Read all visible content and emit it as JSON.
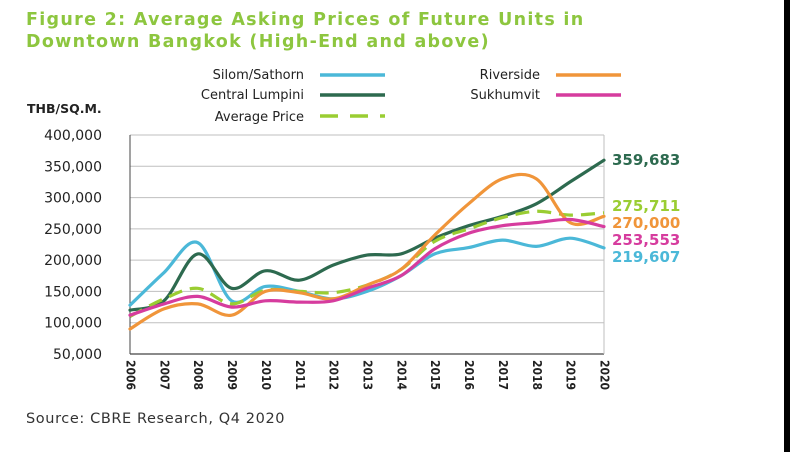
{
  "figure_title_line1": "Figure 2: Average Asking Prices of Future Units in",
  "figure_title_line2": "Downtown Bangkok (High-End and above)",
  "source": "Source: CBRE Research, Q4 2020",
  "chart_data": {
    "type": "line",
    "ylabel": "THB/SQ.M.",
    "ylim": [
      50000,
      400000
    ],
    "yticks": [
      "400,000",
      "350,000",
      "300,000",
      "250,000",
      "200,000",
      "150,000",
      "100,000",
      "50,000"
    ],
    "ytick_values": [
      400000,
      350000,
      300000,
      250000,
      200000,
      150000,
      100000,
      50000
    ],
    "categories": [
      "2006",
      "2007",
      "2008",
      "2009",
      "2010",
      "2011",
      "2012",
      "2013",
      "2014",
      "2015",
      "2016",
      "2017",
      "2018",
      "2019",
      "2020"
    ],
    "grid": true,
    "legend_position": "top",
    "series": [
      {
        "name": "Silom/Sathorn",
        "color": "#4bb8d8",
        "dashed": false,
        "values": [
          128000,
          180000,
          228000,
          135000,
          158000,
          150000,
          138000,
          150000,
          175000,
          210000,
          220000,
          232000,
          222000,
          235000,
          219607
        ],
        "end_label": "219,607"
      },
      {
        "name": "Central Lumpini",
        "color": "#2d6a4f",
        "dashed": false,
        "values": [
          120000,
          135000,
          210000,
          155000,
          183000,
          168000,
          192000,
          208000,
          210000,
          235000,
          255000,
          270000,
          290000,
          325000,
          359683
        ],
        "end_label": "359,683"
      },
      {
        "name": "Average Price",
        "color": "#9acd32",
        "dashed": true,
        "values": [
          110000,
          138000,
          155000,
          130000,
          152000,
          150000,
          148000,
          160000,
          185000,
          230000,
          250000,
          268000,
          278000,
          272000,
          275711
        ],
        "end_label": "275,711"
      },
      {
        "name": "Riverside",
        "color": "#f0953a",
        "dashed": false,
        "values": [
          90000,
          122000,
          130000,
          112000,
          150000,
          148000,
          138000,
          160000,
          185000,
          240000,
          290000,
          330000,
          330000,
          260000,
          270000
        ],
        "end_label": "270,000"
      },
      {
        "name": "Sukhumvit",
        "color": "#d63c9e",
        "dashed": false,
        "values": [
          112000,
          130000,
          142000,
          125000,
          135000,
          133000,
          135000,
          155000,
          175000,
          218000,
          243000,
          255000,
          260000,
          265000,
          253553
        ],
        "end_label": "253,553"
      }
    ]
  }
}
